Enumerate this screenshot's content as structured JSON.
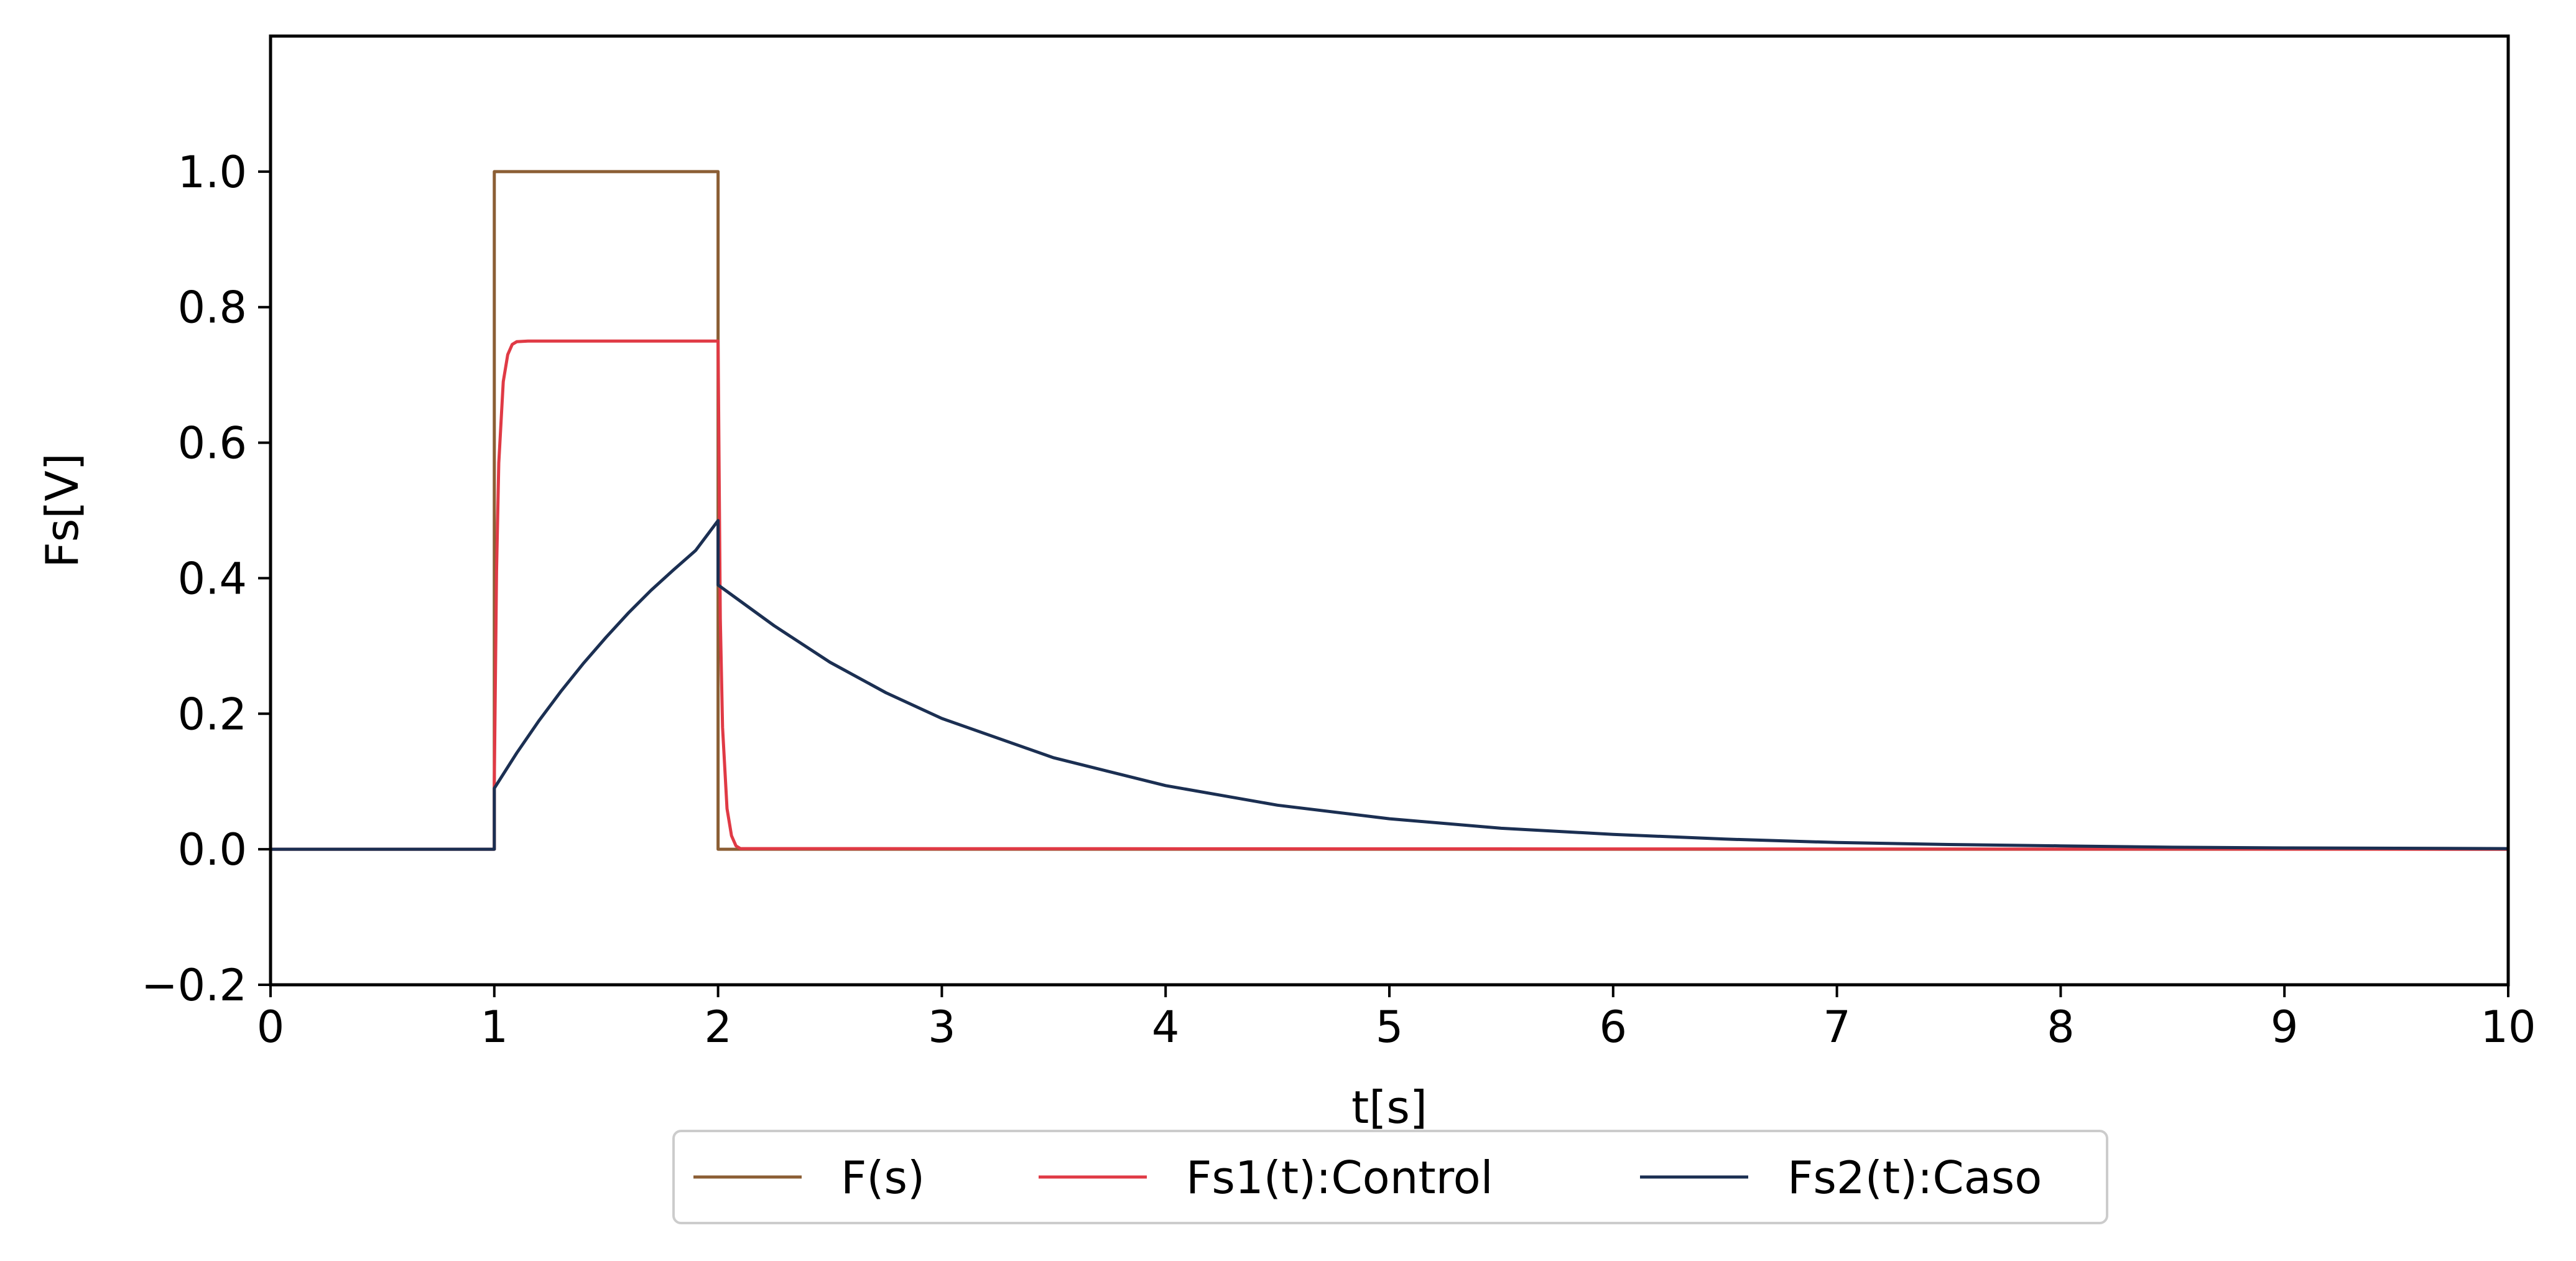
{
  "chart_data": {
    "type": "line",
    "title": "",
    "xlabel": "t[s]",
    "ylabel": "Fs[V]",
    "xlim": [
      0,
      10
    ],
    "ylim": [
      -0.2,
      1.2
    ],
    "xticks": [
      0,
      1,
      2,
      3,
      4,
      5,
      6,
      7,
      8,
      9,
      10
    ],
    "yticks": [
      -0.2,
      0.0,
      0.2,
      0.4,
      0.6,
      0.8,
      1.0
    ],
    "xtick_labels": [
      "0",
      "1",
      "2",
      "3",
      "4",
      "5",
      "6",
      "7",
      "8",
      "9",
      "10"
    ],
    "ytick_labels": [
      "−0.2",
      "0.0",
      "0.2",
      "0.4",
      "0.6",
      "0.8",
      "1.0"
    ],
    "grid": false,
    "legend_position": "bottom-center",
    "series": [
      {
        "name": "F(s)",
        "color": "#8b5e34",
        "x": [
          0,
          1,
          1,
          2,
          2,
          10
        ],
        "y": [
          0,
          0,
          1.0,
          1.0,
          0,
          0
        ]
      },
      {
        "name": "Fs1(t):Control",
        "color": "#e03a45",
        "x": [
          0,
          1,
          1,
          1.01,
          1.02,
          1.04,
          1.06,
          1.08,
          1.1,
          1.15,
          2,
          2,
          2.01,
          2.02,
          2.04,
          2.06,
          2.08,
          2.1,
          10
        ],
        "y": [
          0,
          0,
          0.1,
          0.41,
          0.57,
          0.69,
          0.73,
          0.745,
          0.749,
          0.75,
          0.75,
          0.75,
          0.34,
          0.18,
          0.06,
          0.02,
          0.005,
          0.001,
          0
        ]
      },
      {
        "name": "Fs2(t):Caso",
        "color": "#1b2f52",
        "x": [
          0,
          1,
          1,
          1.1,
          1.2,
          1.3,
          1.4,
          1.5,
          1.6,
          1.7,
          1.8,
          1.9,
          2,
          2,
          2.25,
          2.5,
          2.75,
          3,
          3.5,
          4,
          4.5,
          5,
          5.5,
          6,
          6.5,
          7,
          7.5,
          8,
          8.5,
          9,
          10
        ],
        "y": [
          0,
          0,
          0.09,
          0.142,
          0.19,
          0.234,
          0.275,
          0.313,
          0.349,
          0.382,
          0.412,
          0.441,
          0.485,
          0.39,
          0.33,
          0.276,
          0.231,
          0.193,
          0.135,
          0.094,
          0.065,
          0.045,
          0.031,
          0.022,
          0.015,
          0.01,
          0.007,
          0.005,
          0.003,
          0.002,
          0.001
        ]
      }
    ]
  }
}
